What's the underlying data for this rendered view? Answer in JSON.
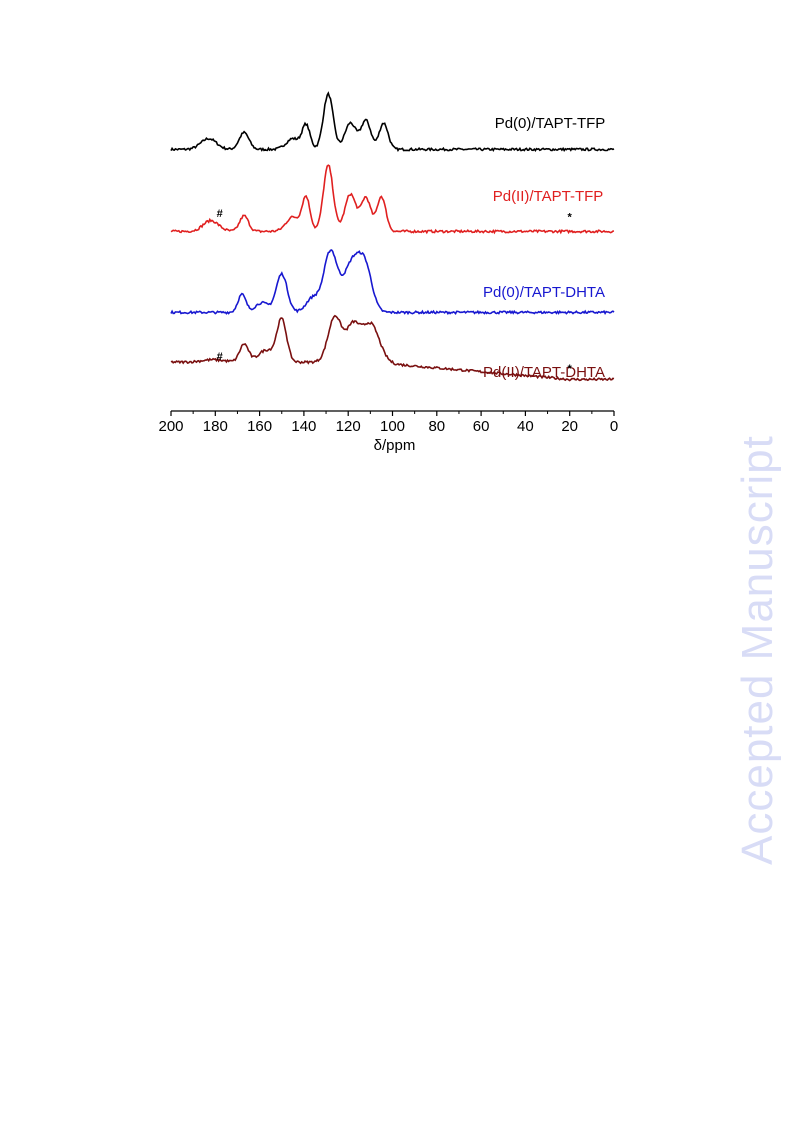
{
  "watermark": "Accepted Manuscript",
  "chart_data": {
    "type": "line",
    "xlabel": "δ/ppm",
    "xlim": [
      200,
      0
    ],
    "x_reversed": true,
    "xticks": [
      200,
      180,
      160,
      140,
      120,
      100,
      80,
      60,
      40,
      20,
      0
    ],
    "yaxis": "none",
    "series": [
      {
        "name": "Pd(0)/TAPT-TFP",
        "color": "#000000",
        "baseline": 0.03,
        "slope": 0.0,
        "peaks": [
          [
            183,
            0.09,
            3.5
          ],
          [
            167,
            0.14,
            2.2
          ],
          [
            145,
            0.09,
            3
          ],
          [
            139,
            0.2,
            1.8
          ],
          [
            129,
            0.46,
            2.2
          ],
          [
            119,
            0.22,
            2.5
          ],
          [
            112,
            0.24,
            2.2
          ],
          [
            104,
            0.22,
            2
          ]
        ],
        "annotations": []
      },
      {
        "name": "Pd(II)/TAPT-TFP",
        "color": "#e02020",
        "baseline": 0.03,
        "slope": 0.0,
        "peaks": [
          [
            182,
            0.09,
            3.5
          ],
          [
            167,
            0.13,
            2
          ],
          [
            145,
            0.12,
            3
          ],
          [
            139,
            0.28,
            1.8
          ],
          [
            129,
            0.55,
            2.2
          ],
          [
            119,
            0.31,
            2.5
          ],
          [
            112,
            0.28,
            2.2
          ],
          [
            105,
            0.29,
            2
          ]
        ],
        "annotations": [
          {
            "text": "#",
            "x": 178,
            "y": 0.15
          },
          {
            "text": "*",
            "x": 20,
            "y": 0.12
          }
        ]
      },
      {
        "name": "Pd(0)/TAPT-DHTA",
        "color": "#1818d0",
        "baseline": 0.03,
        "slope": 0.0,
        "peaks": [
          [
            168,
            0.15,
            1.8
          ],
          [
            159,
            0.08,
            3
          ],
          [
            150,
            0.32,
            2.5
          ],
          [
            136,
            0.12,
            3
          ],
          [
            128,
            0.5,
            3
          ],
          [
            118,
            0.42,
            4
          ],
          [
            112,
            0.3,
            3
          ]
        ],
        "annotations": []
      },
      {
        "name": "Pd(II)/TAPT-DHTA",
        "color": "#7a1010",
        "baseline": 0.03,
        "slope": 0.0016,
        "peaks": [
          [
            181,
            0.02,
            5
          ],
          [
            167,
            0.15,
            2
          ],
          [
            157,
            0.1,
            3.5
          ],
          [
            150,
            0.35,
            2.2
          ],
          [
            126,
            0.38,
            3
          ],
          [
            118,
            0.28,
            3
          ],
          [
            110,
            0.32,
            4
          ]
        ],
        "annotations": [
          {
            "text": "#",
            "x": 178,
            "y": 0.19
          },
          {
            "text": "*",
            "x": 20,
            "y": 0.09
          }
        ]
      }
    ]
  }
}
